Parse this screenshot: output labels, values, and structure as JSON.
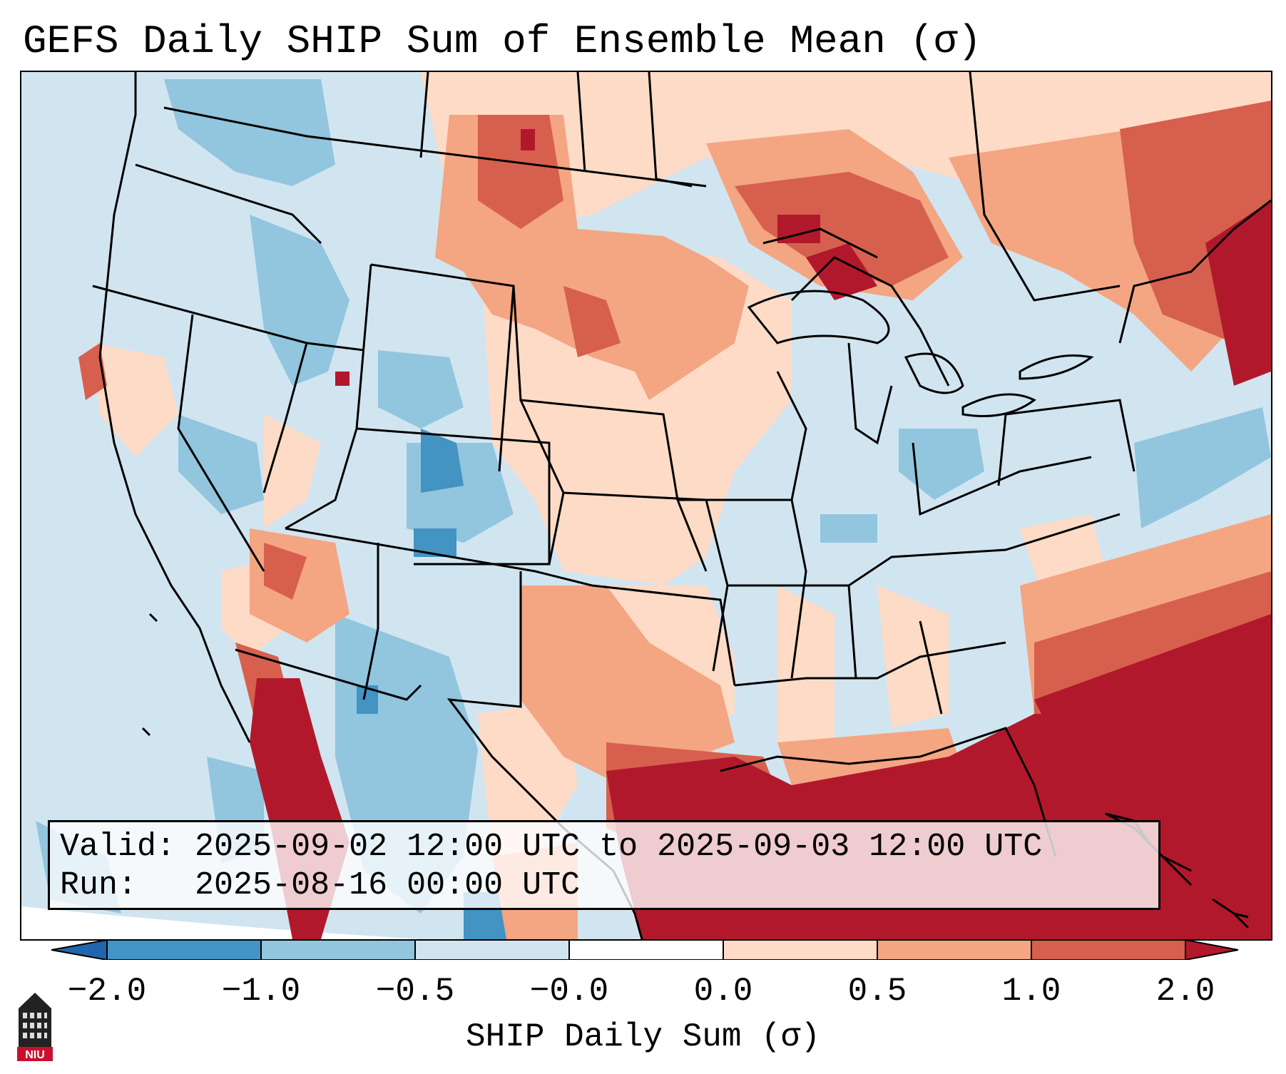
{
  "title": "GEFS Daily SHIP Sum of Ensemble Mean (σ)",
  "info": {
    "valid_label": "Valid:",
    "valid_value": "2025-09-02 12:00 UTC to 2025-09-03 12:00 UTC",
    "run_label": "Run:",
    "run_value": "2025-08-16 00:00 UTC"
  },
  "colorbar": {
    "label": "SHIP Daily Sum (σ)",
    "ticks": [
      "−2.0",
      "−1.0",
      "−0.5",
      "−0.0",
      "0.0",
      "0.5",
      "1.0",
      "2.0"
    ],
    "colors": [
      "#4393c3",
      "#92c5de",
      "#d1e5f0",
      "#ffffff",
      "#fddbc7",
      "#f4a582",
      "#d6604d",
      "#b2182b"
    ],
    "under_color": "#2166ac",
    "over_color": "#b2182b"
  },
  "logo": {
    "text": "NIU",
    "color": "#c8102e"
  }
}
